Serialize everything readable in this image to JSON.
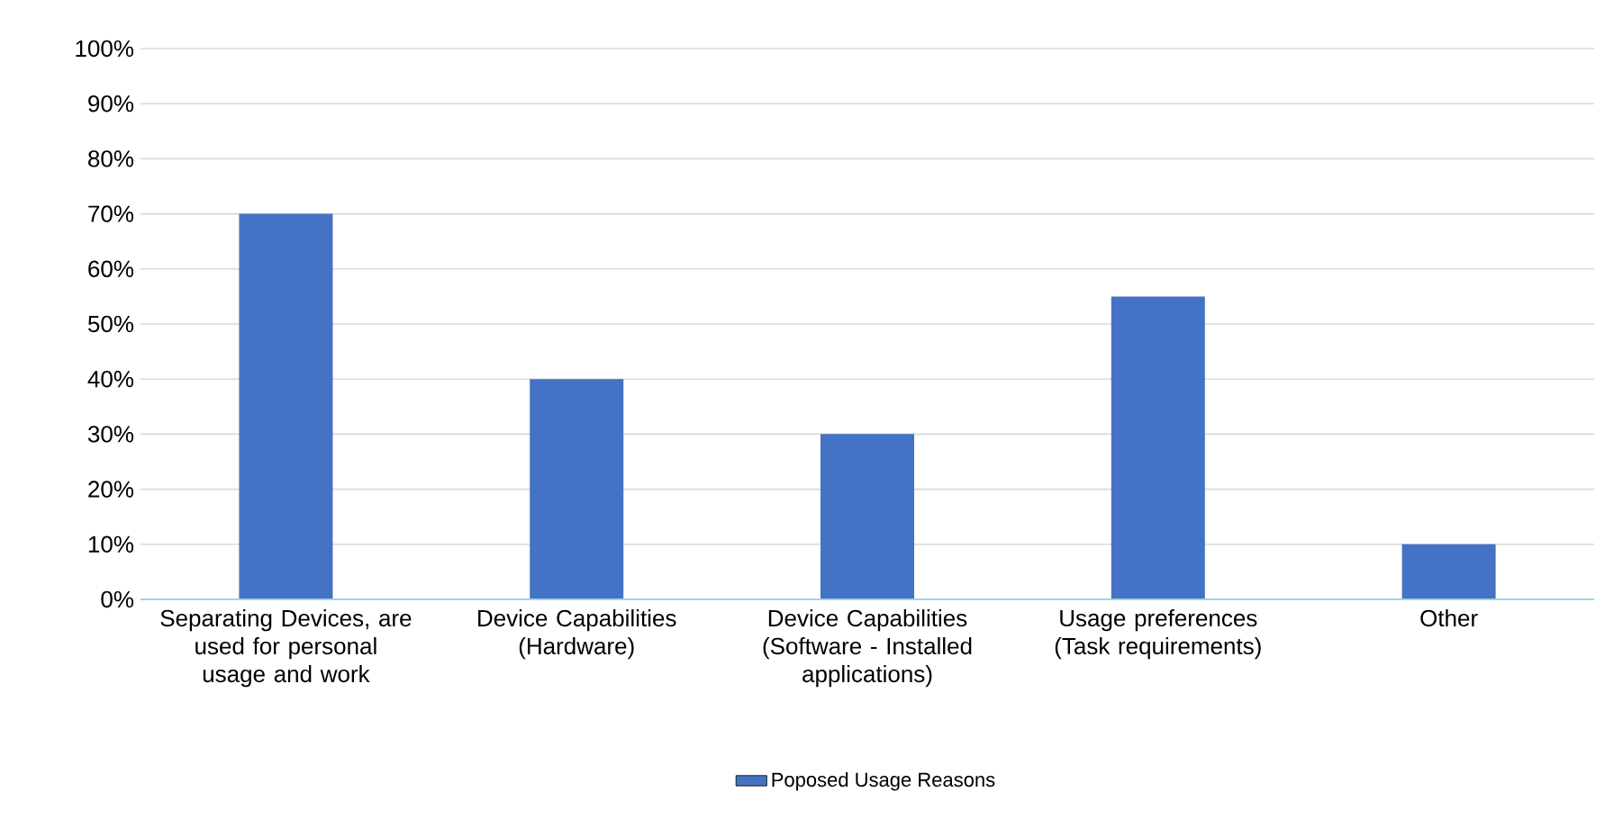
{
  "chart_data": {
    "type": "bar",
    "categories": [
      "Separating Devices, are used for personal usage and work",
      "Device Capabilities (Hardware)",
      "Device Capabilities (Software - Installed applications)",
      "Usage preferences (Task requirements)",
      "Other"
    ],
    "series": [
      {
        "name": "Poposed Usage Reasons",
        "color": "#4472c4",
        "values": [
          70,
          40,
          30,
          55,
          10
        ]
      }
    ],
    "ylim": [
      0,
      100
    ],
    "yticks": [
      {
        "value": 0,
        "label": "0%"
      },
      {
        "value": 10,
        "label": "10%"
      },
      {
        "value": 20,
        "label": "20%"
      },
      {
        "value": 30,
        "label": "30%"
      },
      {
        "value": 40,
        "label": "40%"
      },
      {
        "value": 50,
        "label": "50%"
      },
      {
        "value": 60,
        "label": "60%"
      },
      {
        "value": 70,
        "label": "70%"
      },
      {
        "value": 80,
        "label": "80%"
      },
      {
        "value": 90,
        "label": "90%"
      },
      {
        "value": 100,
        "label": "100%"
      }
    ],
    "grid": "y",
    "legend": "bottom"
  }
}
